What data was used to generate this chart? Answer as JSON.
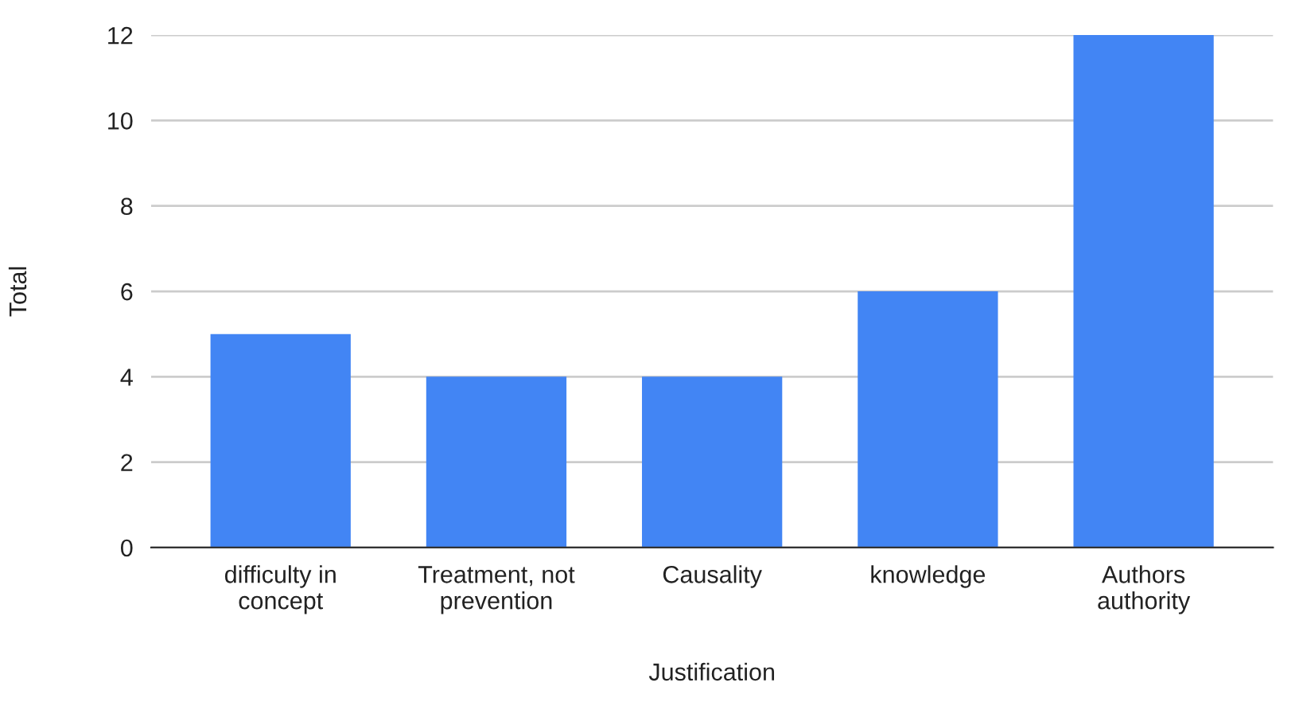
{
  "chart_data": {
    "type": "bar",
    "xlabel": "Justification",
    "ylabel": "Total",
    "categories": [
      "difficulty in\nconcept",
      "Treatment, not\nprevention",
      "Causality",
      "knowledge",
      "Authors\nauthority"
    ],
    "values": [
      5,
      4,
      4,
      6,
      12
    ],
    "color": "#4285f4",
    "ylim": [
      0,
      12
    ],
    "yticks": [
      0,
      2,
      4,
      6,
      8,
      10,
      12
    ],
    "grid": "y",
    "legend": false
  }
}
